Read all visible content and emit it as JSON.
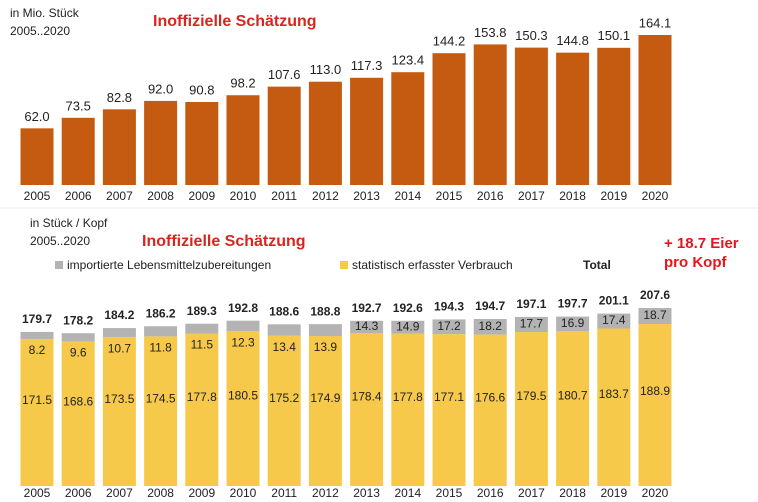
{
  "chart_data": [
    {
      "type": "bar",
      "title": "Inoffizielle Schätzung",
      "unit": "in Mio. Stück",
      "period": "2005..2020",
      "categories": [
        "2005",
        "2006",
        "2007",
        "2008",
        "2009",
        "2010",
        "2011",
        "2012",
        "2013",
        "2014",
        "2015",
        "2016",
        "2017",
        "2018",
        "2019",
        "2020"
      ],
      "values": [
        62.0,
        73.5,
        82.8,
        92.0,
        90.8,
        98.2,
        107.6,
        113.0,
        117.3,
        123.4,
        144.2,
        153.8,
        150.3,
        144.8,
        150.1,
        164.1
      ],
      "value_labels": [
        "62.0",
        "73.5",
        "82.8",
        "92.0",
        "90.8",
        "98.2",
        "107.6",
        "113.0",
        "117.3",
        "123.4",
        "144.2",
        "153.8",
        "150.3",
        "144.8",
        "150.1",
        "164.1"
      ],
      "color": "#c55a11"
    },
    {
      "type": "stacked_bar",
      "title": "Inoffizielle Schätzung",
      "unit": "in Stück / Kopf",
      "period": "2005..2020",
      "categories": [
        "2005",
        "2006",
        "2007",
        "2008",
        "2009",
        "2010",
        "2011",
        "2012",
        "2013",
        "2014",
        "2015",
        "2016",
        "2017",
        "2018",
        "2019",
        "2020"
      ],
      "series": [
        {
          "name": "statistisch erfasster Verbrauch",
          "color": "#f7c94a",
          "values": [
            171.5,
            168.6,
            173.5,
            174.5,
            177.8,
            180.5,
            175.2,
            174.9,
            178.4,
            177.8,
            177.1,
            176.6,
            179.5,
            180.7,
            183.7,
            188.9
          ]
        },
        {
          "name": "importierte Lebensmittelzubereitungen",
          "color": "#b3b3b3",
          "values": [
            8.2,
            9.6,
            10.7,
            11.8,
            11.5,
            12.3,
            13.4,
            13.9,
            14.3,
            14.9,
            17.2,
            18.2,
            17.7,
            16.9,
            17.4,
            18.7
          ]
        }
      ],
      "total_label": "Total",
      "totals": [
        179.7,
        178.2,
        184.2,
        186.2,
        189.3,
        192.8,
        188.6,
        188.8,
        192.7,
        192.6,
        194.3,
        194.7,
        197.1,
        197.7,
        201.1,
        207.6
      ],
      "annotation": [
        "+ 18.7 Eier",
        "pro Kopf"
      ]
    }
  ]
}
